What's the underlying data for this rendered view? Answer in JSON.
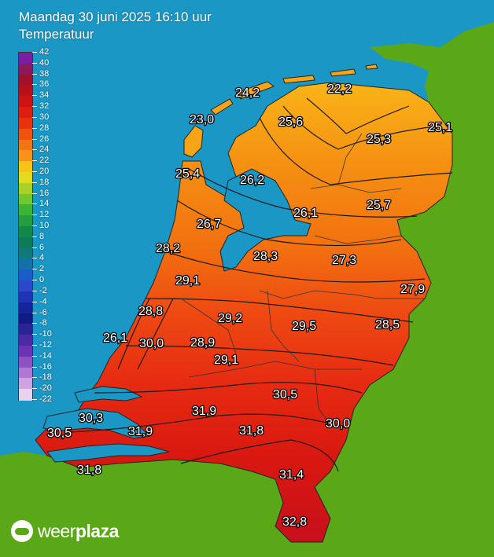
{
  "header": {
    "title": "Maandag 30 juni 2025 16:10 uur",
    "subtitle": "Temperatuur"
  },
  "legend": {
    "ticks": [
      "42",
      "40",
      "38",
      "36",
      "34",
      "32",
      "30",
      "28",
      "26",
      "24",
      "22",
      "20",
      "18",
      "16",
      "14",
      "12",
      "10",
      "8",
      "6",
      "4",
      "2",
      "0",
      "-2",
      "-4",
      "-6",
      "-8",
      "-10",
      "-12",
      "-14",
      "-16",
      "-18",
      "-20",
      "-22"
    ],
    "colors": [
      "#7b1fa2",
      "#8a1a5a",
      "#a0122c",
      "#b8101a",
      "#cc1414",
      "#de1e10",
      "#e8320e",
      "#ee5410",
      "#f37414",
      "#f79418",
      "#fbc21a",
      "#e2dc20",
      "#a8d228",
      "#6ec82e",
      "#3cb432",
      "#229e3e",
      "#14884a",
      "#0e7a58",
      "#107a7a",
      "#1470a8",
      "#1c5cc8",
      "#2a48c8",
      "#1e34b4",
      "#16249a",
      "#121a86",
      "#2a2494",
      "#4a2aa6",
      "#6a34b4",
      "#8e50c2",
      "#b078d0",
      "#cea4e0",
      "#e8d2f0"
    ]
  },
  "colors": {
    "sea": "#1a97c4",
    "land": "#5aa818",
    "hot": "#e01010",
    "warm": "#f06010",
    "mild": "#f7a416"
  },
  "stations": [
    {
      "value": "24,2"
    },
    {
      "value": "22,2"
    },
    {
      "value": "23,0"
    },
    {
      "value": "25,6"
    },
    {
      "value": "25,1"
    },
    {
      "value": "25,3"
    },
    {
      "value": "25,4"
    },
    {
      "value": "26,2"
    },
    {
      "value": "25,7"
    },
    {
      "value": "26,1"
    },
    {
      "value": "26,7"
    },
    {
      "value": "28,2"
    },
    {
      "value": "28,3"
    },
    {
      "value": "27,3"
    },
    {
      "value": "29,1"
    },
    {
      "value": "27,9"
    },
    {
      "value": "28,8"
    },
    {
      "value": "29,2"
    },
    {
      "value": "29,5"
    },
    {
      "value": "28,5"
    },
    {
      "value": "26,1"
    },
    {
      "value": "30,0"
    },
    {
      "value": "28,9"
    },
    {
      "value": "29,1"
    },
    {
      "value": "30,5"
    },
    {
      "value": "30,3"
    },
    {
      "value": "31,9"
    },
    {
      "value": "30,0"
    },
    {
      "value": "30,5"
    },
    {
      "value": "31,9"
    },
    {
      "value": "31,8"
    },
    {
      "value": "31,8"
    },
    {
      "value": "31,4"
    },
    {
      "value": "32,8"
    }
  ],
  "branding": {
    "brand_plain": "weer",
    "brand_bold": "plaza"
  }
}
